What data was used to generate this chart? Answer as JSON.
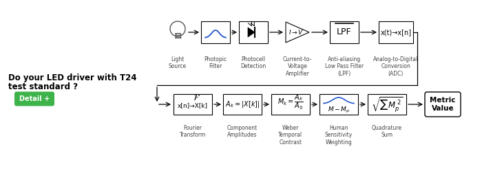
{
  "bg_color": "#ffffff",
  "left_text_line1": "Do your LED driver with T24",
  "left_text_line2": "test standard ?",
  "button_text": "Detail +",
  "button_color": "#3db34a",
  "button_text_color": "#ffffff",
  "top_row_labels": [
    "Light\nSource",
    "Photopic\nFilter",
    "Photocell\nDetection",
    "Current-to-\nVoltage\nAmplifier",
    "Anti-aliasing\nLow Pass Filter\n(LPF)",
    "Analog-to-Digital\nConversion\n(ADC)"
  ],
  "bottom_row_labels": [
    "Fourier\nTransform",
    "Component\nAmplitudes",
    "Weber\nTemporal\nContrast",
    "Human\nSensitivity\nWeighting",
    "Quadrature\nSum"
  ],
  "metric_value_text": "Metric\nValue",
  "line_color": "#000000",
  "curve_color": "#2255cc",
  "text_color": "#444444"
}
